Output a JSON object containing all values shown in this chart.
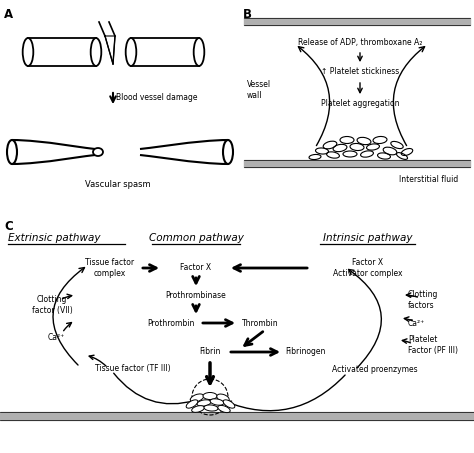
{
  "bg_color": "#ffffff",
  "panel_A": "A",
  "panel_B": "B",
  "panel_C": "C",
  "blood_vessel_damage": "Blood vessel damage",
  "vascular_spasm": "Vascular spasm",
  "release_adp": "Release of ADP, thromboxane A₂",
  "platelet_stickiness": "↑ Platelet stickiness",
  "platelet_aggregation": "Platelet aggregation",
  "vessel_wall": "Vessel\nwall",
  "interstitial_fluid": "Interstitial fluid",
  "extrinsic": "Extrinsic pathway",
  "common": "Common pathway",
  "intrinsic": "Intrinsic pathway",
  "tissue_factor_complex": "Tissue factor\ncomplex",
  "factor_x": "Factor X",
  "factor_x_activator": "Factor X\nActivator complex",
  "prothrombinase": "Prothrombinase",
  "prothrombin": "Prothrombin",
  "thrombin": "Thrombin",
  "fibrin": "Fibrin",
  "fibrinogen": "Fibrinogen",
  "clotting_factor_vii": "Clotting\nfactor (VII)",
  "ca2_left": "Ca²⁺",
  "ca2_right": "Ca²⁺",
  "clotting_factors_right": "Clotting\nfactors",
  "tissue_factor_tf": "Tissue factor (TF III)",
  "platelet_factor": "Platelet\nFactor (PF III)",
  "activated_proenzymes": "Activated proenzymes"
}
